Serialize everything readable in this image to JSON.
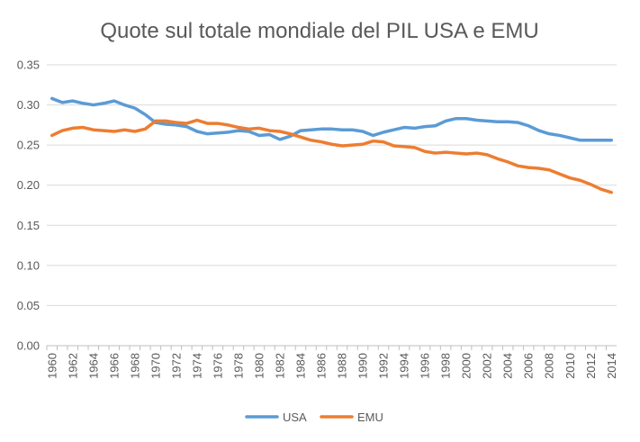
{
  "chart_data": {
    "type": "line",
    "title": "Quote sul totale mondiale del PIL USA e EMU",
    "xlabel": "",
    "ylabel": "",
    "x": [
      1960,
      1961,
      1962,
      1963,
      1964,
      1965,
      1966,
      1967,
      1968,
      1969,
      1970,
      1971,
      1972,
      1973,
      1974,
      1975,
      1976,
      1977,
      1978,
      1979,
      1980,
      1981,
      1982,
      1983,
      1984,
      1985,
      1986,
      1987,
      1988,
      1989,
      1990,
      1991,
      1992,
      1993,
      1994,
      1995,
      1996,
      1997,
      1998,
      1999,
      2000,
      2001,
      2002,
      2003,
      2004,
      2005,
      2006,
      2007,
      2008,
      2009,
      2010,
      2011,
      2012,
      2013,
      2014
    ],
    "x_tick_labels": [
      "1960",
      "1962",
      "1964",
      "1966",
      "1968",
      "1970",
      "1972",
      "1974",
      "1976",
      "1978",
      "1980",
      "1982",
      "1984",
      "1986",
      "1988",
      "1990",
      "1992",
      "1994",
      "1996",
      "1998",
      "2000",
      "2002",
      "2004",
      "2006",
      "2008",
      "2010",
      "2012",
      "2014"
    ],
    "y_tick_labels": [
      "0.00",
      "0.05",
      "0.10",
      "0.15",
      "0.20",
      "0.25",
      "0.30",
      "0.35"
    ],
    "ylim": [
      0,
      0.35
    ],
    "grid": true,
    "legend_position": "bottom",
    "series": [
      {
        "name": "USA",
        "color": "#5B9BD5",
        "values": [
          0.308,
          0.303,
          0.305,
          0.302,
          0.3,
          0.302,
          0.305,
          0.3,
          0.296,
          0.288,
          0.278,
          0.276,
          0.275,
          0.273,
          0.267,
          0.264,
          0.265,
          0.266,
          0.268,
          0.267,
          0.262,
          0.263,
          0.257,
          0.261,
          0.268,
          0.269,
          0.27,
          0.27,
          0.269,
          0.269,
          0.267,
          0.262,
          0.266,
          0.269,
          0.272,
          0.271,
          0.273,
          0.274,
          0.28,
          0.283,
          0.283,
          0.281,
          0.28,
          0.279,
          0.279,
          0.278,
          0.274,
          0.268,
          0.264,
          0.262,
          0.259,
          0.256,
          0.256,
          0.256,
          0.256
        ]
      },
      {
        "name": "EMU",
        "color": "#ED7D31",
        "values": [
          0.262,
          0.268,
          0.271,
          0.272,
          0.269,
          0.268,
          0.267,
          0.269,
          0.267,
          0.27,
          0.28,
          0.28,
          0.278,
          0.277,
          0.281,
          0.277,
          0.277,
          0.275,
          0.272,
          0.27,
          0.271,
          0.268,
          0.267,
          0.264,
          0.26,
          0.256,
          0.254,
          0.251,
          0.249,
          0.25,
          0.251,
          0.255,
          0.254,
          0.249,
          0.248,
          0.247,
          0.242,
          0.24,
          0.241,
          0.24,
          0.239,
          0.24,
          0.238,
          0.233,
          0.229,
          0.224,
          0.222,
          0.221,
          0.219,
          0.214,
          0.209,
          0.206,
          0.201,
          0.195,
          0.191
        ]
      }
    ]
  }
}
